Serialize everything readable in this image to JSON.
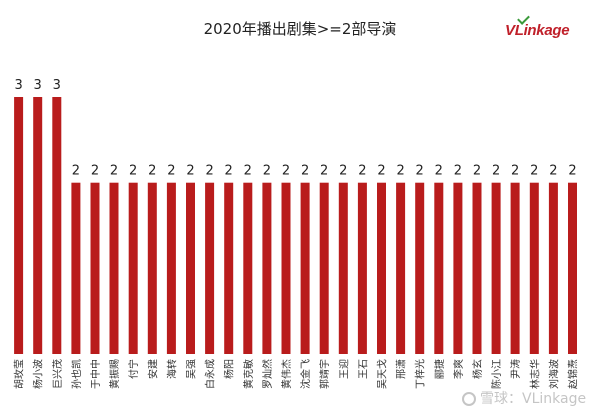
{
  "title": "2020年播出剧集>=2部导演",
  "logo": "VLinkage",
  "watermark": "雪球：VLinkage",
  "colors": {
    "bar": "#b91c1c"
  },
  "chart_data": {
    "type": "bar",
    "title": "2020年播出剧集>=2部导演",
    "xlabel": "",
    "ylabel": "",
    "ylim": [
      0,
      3
    ],
    "grid": false,
    "categories": [
      "胡玫莹",
      "杨小波",
      "巨兴茂",
      "孙也凯",
      "于中中",
      "黄振赐",
      "付宁",
      "安建",
      "海转",
      "吴强",
      "白永成",
      "杨阳",
      "黄克敏",
      "罗灿然",
      "黄伟杰",
      "沈金飞",
      "郭靖宇",
      "王迎",
      "王石",
      "吴天戈",
      "邢潇",
      "丁梓光",
      "郦捷",
      "李爽",
      "杨玄",
      "陈小江",
      "尹涛",
      "林志华",
      "刘海波",
      "赵锦焘"
    ],
    "values": [
      3,
      3,
      3,
      2,
      2,
      2,
      2,
      2,
      2,
      2,
      2,
      2,
      2,
      2,
      2,
      2,
      2,
      2,
      2,
      2,
      2,
      2,
      2,
      2,
      2,
      2,
      2,
      2,
      2,
      2
    ]
  }
}
